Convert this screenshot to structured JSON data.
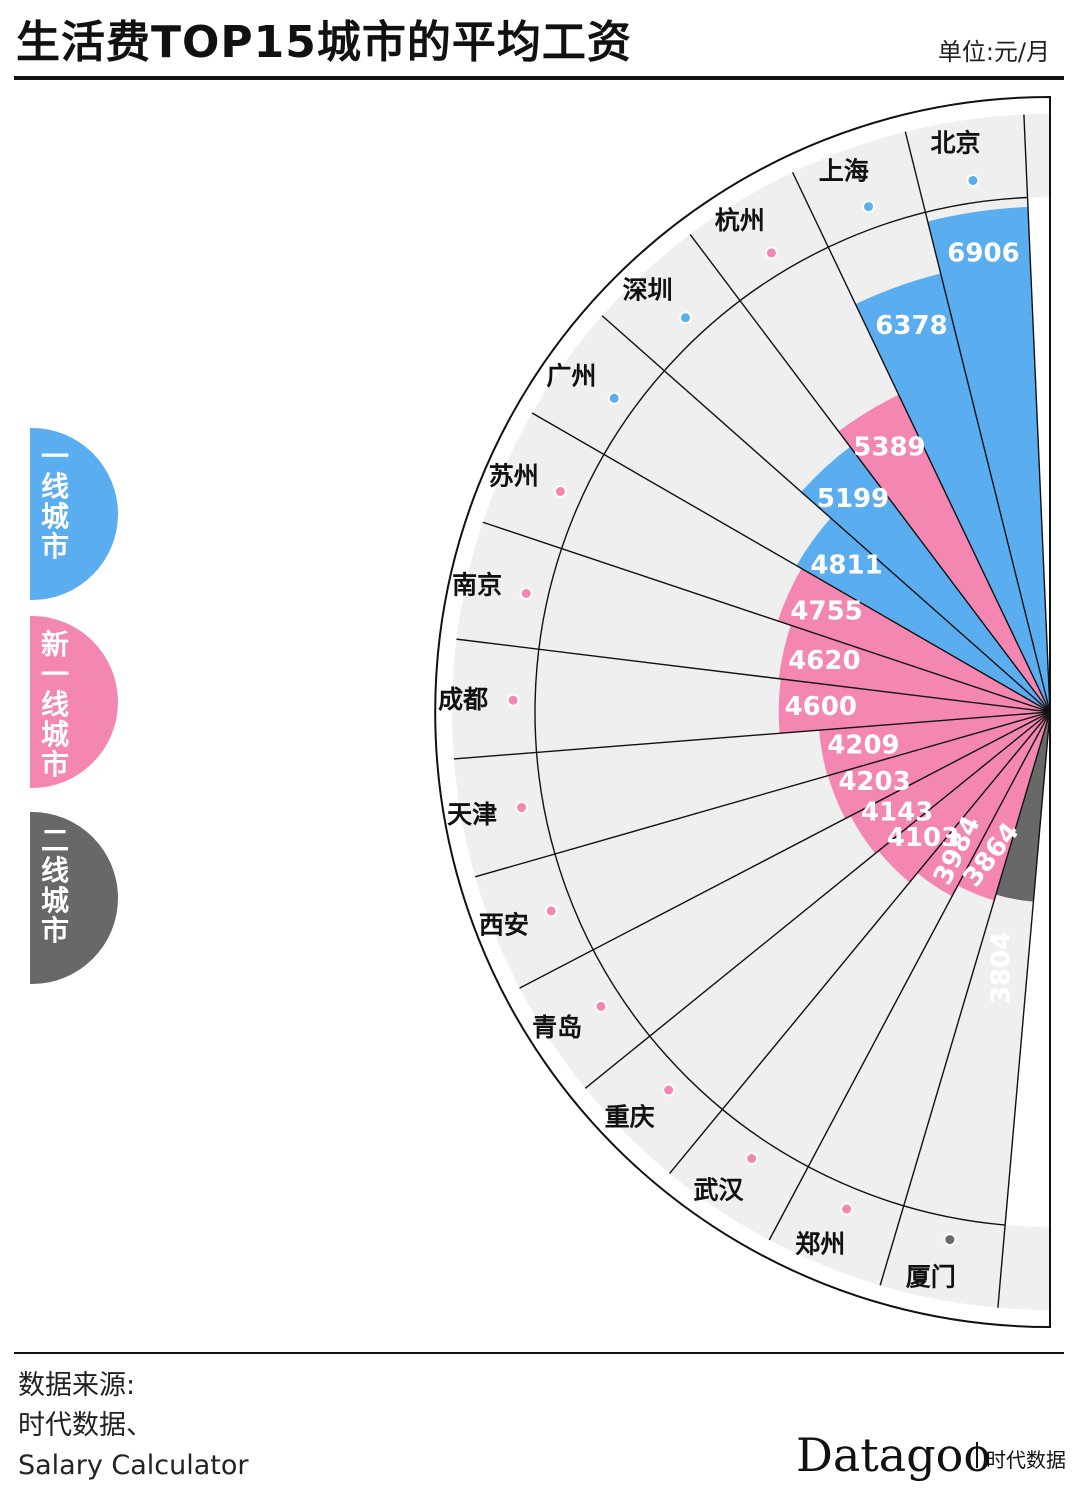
{
  "title": "生活费TOP15城市的平均工资",
  "unit": "单位:元/月",
  "legend": [
    {
      "label": "一线城市",
      "color": "#5aaef0"
    },
    {
      "label": "新一线城市",
      "color": "#f387b2"
    },
    {
      "label": "二线城市",
      "color": "#686868"
    }
  ],
  "source": {
    "line1": "数据来源:",
    "line2": "时代数据、",
    "line3": "Salary Calculator"
  },
  "brand": {
    "name": "Datagoo",
    "cn": "时代数据"
  },
  "colors": {
    "tier1": "#5aaef0",
    "newtier1": "#f387b2",
    "tier2": "#686868",
    "band": "#efefef",
    "line": "#111111"
  },
  "chart_data": {
    "type": "polar-bar",
    "title": "生活费TOP15城市的平均工资",
    "unit": "元/月",
    "categories": [
      "北京",
      "上海",
      "杭州",
      "深圳",
      "广州",
      "苏州",
      "南京",
      "成都",
      "天津",
      "西安",
      "青岛",
      "重庆",
      "武汉",
      "郑州",
      "厦门"
    ],
    "values": [
      6906,
      6378,
      5389,
      5199,
      4811,
      4755,
      4620,
      4600,
      4209,
      4203,
      4143,
      4103,
      3984,
      3864,
      3804
    ],
    "tier": [
      "tier1",
      "tier1",
      "newtier1",
      "tier1",
      "tier1",
      "newtier1",
      "newtier1",
      "newtier1",
      "newtier1",
      "newtier1",
      "newtier1",
      "newtier1",
      "newtier1",
      "newtier1",
      "tier2"
    ],
    "labels": [
      "6906",
      "6378",
      "5389",
      "5199",
      "4811",
      "4755",
      "4620",
      "4600",
      "4209",
      "4203",
      "4143",
      "4103",
      "3984",
      "3864",
      "3804"
    ]
  }
}
